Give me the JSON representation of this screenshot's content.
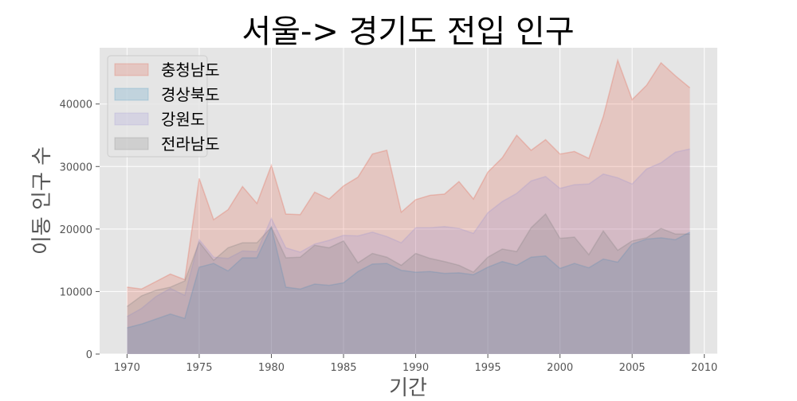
{
  "chart_data": {
    "type": "area",
    "title": "서울-> 경기도 전입 인구",
    "xlabel": "기간",
    "ylabel": "이동 인구 수",
    "x": [
      1970,
      1971,
      1972,
      1973,
      1974,
      1975,
      1976,
      1977,
      1978,
      1979,
      1980,
      1981,
      1982,
      1983,
      1984,
      1985,
      1986,
      1987,
      1988,
      1989,
      1990,
      1991,
      1992,
      1993,
      1994,
      1995,
      1996,
      1997,
      1998,
      1999,
      2000,
      2001,
      2002,
      2003,
      2004,
      2005,
      2006,
      2007,
      2008,
      2009
    ],
    "xlim": [
      1968.1,
      2010.9
    ],
    "ylim": [
      0,
      49000
    ],
    "xticks": [
      1970,
      1975,
      1980,
      1985,
      1990,
      1995,
      2000,
      2005,
      2010
    ],
    "yticks": [
      0,
      10000,
      20000,
      30000,
      40000
    ],
    "grid": true,
    "legend_position": "upper-left",
    "stacked": false,
    "series": [
      {
        "name": "충청남도",
        "color": "#E24A33",
        "values": [
          10700,
          10400,
          11600,
          12800,
          11900,
          28100,
          21500,
          23100,
          26800,
          24100,
          30200,
          22400,
          22300,
          25900,
          24800,
          26900,
          28300,
          32000,
          32600,
          22700,
          24700,
          25400,
          25600,
          27600,
          24800,
          29100,
          31400,
          35000,
          32600,
          34300,
          32000,
          32400,
          31300,
          38000,
          47000,
          40700,
          43000,
          46600,
          44500,
          42600
        ]
      },
      {
        "name": "경상북도",
        "color": "#348ABD",
        "values": [
          4200,
          4800,
          5600,
          6400,
          5700,
          13900,
          14500,
          13300,
          15400,
          15400,
          20300,
          10700,
          10400,
          11200,
          11000,
          11400,
          13200,
          14400,
          14500,
          13400,
          13100,
          13200,
          12900,
          13000,
          12700,
          13900,
          14800,
          14200,
          15500,
          15700,
          13700,
          14500,
          13800,
          15200,
          14700,
          17600,
          18400,
          18600,
          18300,
          19500
        ]
      },
      {
        "name": "강원도",
        "color": "#988ED5",
        "values": [
          6000,
          7300,
          9200,
          10500,
          9400,
          18300,
          15500,
          15300,
          16500,
          16400,
          21700,
          17000,
          16300,
          17600,
          18200,
          19000,
          18900,
          19500,
          18800,
          17800,
          20200,
          20200,
          20400,
          20100,
          19300,
          22600,
          24400,
          25700,
          27700,
          28400,
          26500,
          27100,
          27200,
          28800,
          28200,
          27200,
          29600,
          30600,
          32300,
          32800
        ]
      },
      {
        "name": "전라남도",
        "color": "#777777",
        "values": [
          7600,
          9300,
          10200,
          10700,
          11700,
          17900,
          15000,
          17000,
          17800,
          17800,
          20300,
          15400,
          15500,
          17400,
          17000,
          18100,
          14600,
          16100,
          15500,
          14200,
          16100,
          15300,
          14800,
          14200,
          13100,
          15500,
          16800,
          16400,
          20200,
          22400,
          18500,
          18700,
          15900,
          19700,
          16600,
          18100,
          18600,
          20100,
          19200,
          19200
        ]
      }
    ]
  }
}
